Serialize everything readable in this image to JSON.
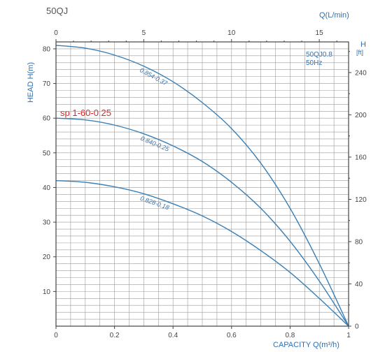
{
  "chart_data": {
    "type": "line",
    "title": "50QJ",
    "highlight_label": "sp 1-60-0.25",
    "model_annotation": [
      "50QJ0.8",
      "50Hz"
    ],
    "x_bottom": {
      "label": "CAPACITY Q(m³/h)",
      "range": [
        0,
        1
      ],
      "ticks": [
        0,
        0.2,
        0.4,
        0.6,
        0.8,
        1
      ],
      "tick_labels": [
        "0",
        "0.2",
        "0.4",
        "0.6",
        "0.8",
        "1"
      ]
    },
    "x_top": {
      "label": "Q(L/min)",
      "range": [
        0,
        16.67
      ],
      "ticks": [
        0,
        5,
        10,
        15
      ],
      "tick_labels": [
        "0",
        "5",
        "10",
        "15"
      ]
    },
    "y_left": {
      "label": "HEAD H(m)",
      "range": [
        0,
        82
      ],
      "ticks": [
        10,
        20,
        30,
        40,
        50,
        60,
        70,
        80
      ],
      "tick_labels": [
        "10",
        "20",
        "30",
        "40",
        "50",
        "60",
        "70",
        "80"
      ]
    },
    "y_right": {
      "label": "H",
      "unit": "[ft]",
      "range": [
        0,
        269
      ],
      "ticks": [
        0,
        40,
        80,
        120,
        160,
        200,
        240
      ],
      "tick_labels": [
        "0",
        "40",
        "80",
        "120",
        "160",
        "200",
        "240"
      ]
    },
    "grid": true,
    "series": [
      {
        "name": "0.854-0.37",
        "x": [
          0,
          0.1,
          0.2,
          0.3,
          0.4,
          0.5,
          0.6,
          0.7,
          0.8,
          0.9,
          1.0
        ],
        "y": [
          81,
          80.2,
          78.2,
          75,
          70.5,
          64.5,
          57,
          47,
          34,
          18,
          0
        ]
      },
      {
        "name": "0.840-0.25",
        "x": [
          0,
          0.1,
          0.2,
          0.3,
          0.4,
          0.5,
          0.6,
          0.7,
          0.8,
          0.9,
          1.0
        ],
        "y": [
          60,
          59.5,
          58,
          55.5,
          52,
          47.5,
          41.5,
          34,
          24.5,
          13,
          0
        ]
      },
      {
        "name": "0.828-0.18",
        "x": [
          0,
          0.1,
          0.2,
          0.3,
          0.4,
          0.5,
          0.6,
          0.7,
          0.8,
          0.9,
          1.0
        ],
        "y": [
          42,
          41.5,
          40.2,
          38.2,
          35.3,
          31.8,
          27.3,
          21.8,
          15.5,
          8,
          0
        ]
      }
    ],
    "colors": {
      "curve": "#3a7fb5",
      "axis_title": "#2f6fae",
      "highlight": "#d62828"
    }
  }
}
